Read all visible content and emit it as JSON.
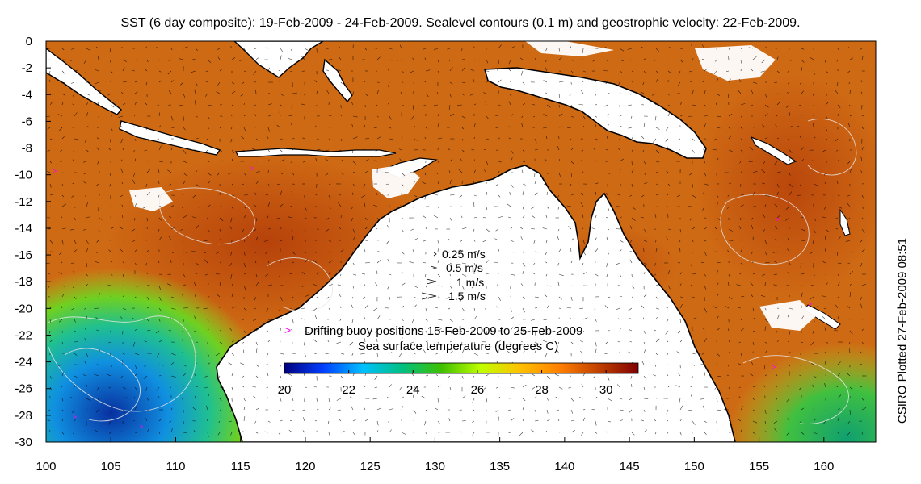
{
  "title": "SST (6 day composite): 19-Feb-2009 - 24-Feb-2009. Sealevel contours (0.1 m) and geostrophic velocity: 22-Feb-2009.",
  "credit": "CSIRO Plotted 27-Feb-2009 08:51",
  "map": {
    "lon_range": [
      100,
      164
    ],
    "lat_range": [
      -30,
      0
    ],
    "x_ticks": [
      "100",
      "105",
      "110",
      "115",
      "120",
      "125",
      "130",
      "135",
      "140",
      "145",
      "150",
      "155",
      "160"
    ],
    "y_ticks": [
      "0",
      "-2",
      "-4",
      "-6",
      "-8",
      "-10",
      "-12",
      "-14",
      "-16",
      "-18",
      "-20",
      "-22",
      "-24",
      "-26",
      "-28",
      "-30"
    ],
    "land_color": "#ffffff",
    "coast_color": "#000000",
    "contour_color": "#e8e8e8"
  },
  "velocity_legend": [
    {
      "label": "0.25 m/s"
    },
    {
      "label": "0.5 m/s"
    },
    {
      "label": "1 m/s"
    },
    {
      "label": "1.5 m/s"
    }
  ],
  "buoy_legend": {
    "marker": ">",
    "label": "Drifting buoy positions 15-Feb-2009 to 25-Feb-2009",
    "color": "#ff00ff"
  },
  "colorbar": {
    "title": "Sea surface temperature (degrees C)",
    "range": [
      20,
      31
    ],
    "ticks": [
      "20",
      "22",
      "24",
      "26",
      "28",
      "30"
    ],
    "stops": [
      "#00007f",
      "#0040ff",
      "#00c0ff",
      "#00c080",
      "#40c000",
      "#c0ff00",
      "#ffc000",
      "#ff8000",
      "#c04000",
      "#800000"
    ]
  }
}
